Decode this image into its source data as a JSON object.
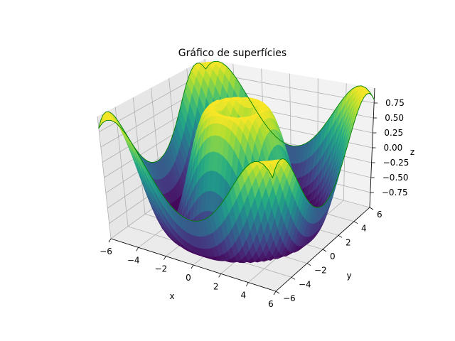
{
  "chart_data": {
    "type": "surface3d",
    "title": "Gráfico de superfícies",
    "xlabel": "x",
    "ylabel": "y",
    "zlabel": "z",
    "function": "z = sin(sqrt(x^2 + y^2))",
    "x_range": [
      -6,
      6
    ],
    "y_range": [
      -6,
      6
    ],
    "z_range": [
      -1,
      1
    ],
    "grid_points": 40,
    "colormap": "viridis",
    "edge_color": "#008000",
    "x_ticks": [
      {
        "value": -6,
        "label": "−6"
      },
      {
        "value": -4,
        "label": "−4"
      },
      {
        "value": -2,
        "label": "−2"
      },
      {
        "value": 0,
        "label": "0"
      },
      {
        "value": 2,
        "label": "2"
      },
      {
        "value": 4,
        "label": "4"
      },
      {
        "value": 6,
        "label": "6"
      }
    ],
    "y_ticks": [
      {
        "value": -6,
        "label": "−6"
      },
      {
        "value": -4,
        "label": "−4"
      },
      {
        "value": -2,
        "label": "−2"
      },
      {
        "value": 0,
        "label": "0"
      },
      {
        "value": 2,
        "label": "2"
      },
      {
        "value": 4,
        "label": "4"
      },
      {
        "value": 6,
        "label": "6"
      }
    ],
    "z_ticks": [
      {
        "value": -0.75,
        "label": "−0.75"
      },
      {
        "value": -0.5,
        "label": "−0.50"
      },
      {
        "value": -0.25,
        "label": "−0.25"
      },
      {
        "value": 0,
        "label": "0.00"
      },
      {
        "value": 0.25,
        "label": "0.25"
      },
      {
        "value": 0.5,
        "label": "0.50"
      },
      {
        "value": 0.75,
        "label": "0.75"
      }
    ],
    "grid": true,
    "pane_colors": {
      "back": "#f2f2f2",
      "side": "#e6e6e6",
      "floor": "#ebebeb",
      "grid": "#b0b0b0"
    }
  }
}
